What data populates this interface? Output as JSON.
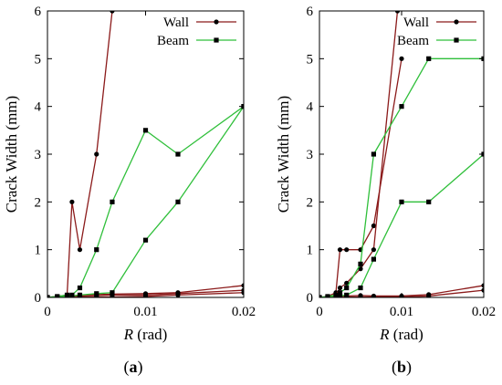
{
  "colors": {
    "wall": "#8b1a1a",
    "beam": "#2fbf3a",
    "axis": "#000000"
  },
  "chart_data": [
    {
      "type": "line",
      "panel_caption": "(a)",
      "caption_letter": "a",
      "xlabel_italic": "R",
      "xlabel_unit": " (rad)",
      "ylabel": "Crack Width (mm)",
      "xlim": [
        0,
        0.02
      ],
      "ylim": [
        0,
        6
      ],
      "xticks": [
        0,
        0.01,
        0.02
      ],
      "xtick_labels": [
        "0",
        "0.01",
        "0.02"
      ],
      "yticks": [
        0,
        1,
        2,
        3,
        4,
        5,
        6
      ],
      "ytick_labels": [
        "0",
        "1",
        "2",
        "3",
        "4",
        "5",
        "6"
      ],
      "legend_position": "top-right",
      "legend": [
        {
          "label": "Wall",
          "marker": "circle",
          "color_key": "wall"
        },
        {
          "label": "Beam",
          "marker": "square",
          "color_key": "beam"
        }
      ],
      "series": [
        {
          "group": "Wall",
          "x": [
            0,
            0.001,
            0.002,
            0.0025,
            0.0033,
            0.005,
            0.0066
          ],
          "y": [
            0,
            0.02,
            0.05,
            2.0,
            1.0,
            3.0,
            6.0
          ]
        },
        {
          "group": "Wall",
          "x": [
            0,
            0.001,
            0.002,
            0.0025,
            0.0033,
            0.005,
            0.0066,
            0.01,
            0.0133,
            0.02
          ],
          "y": [
            0,
            0.01,
            0.02,
            0.03,
            0.05,
            0.06,
            0.07,
            0.08,
            0.1,
            0.25
          ]
        },
        {
          "group": "Wall",
          "x": [
            0,
            0.001,
            0.002,
            0.0025,
            0.0033,
            0.005,
            0.0066,
            0.01,
            0.0133,
            0.02
          ],
          "y": [
            0,
            0.0,
            0.01,
            0.02,
            0.03,
            0.04,
            0.05,
            0.05,
            0.08,
            0.15
          ]
        },
        {
          "group": "Wall",
          "x": [
            0,
            0.001,
            0.002,
            0.0025,
            0.0033,
            0.005,
            0.0066,
            0.01,
            0.0133,
            0.02
          ],
          "y": [
            0,
            0.0,
            0.0,
            0.0,
            0.01,
            0.01,
            0.01,
            0.02,
            0.05,
            0.1
          ]
        },
        {
          "group": "Beam",
          "x": [
            0,
            0.001,
            0.002,
            0.0025,
            0.0033,
            0.005,
            0.0066,
            0.01,
            0.0133,
            0.02
          ],
          "y": [
            0,
            0.02,
            0.05,
            0.05,
            0.2,
            1.0,
            2.0,
            3.5,
            3.0,
            4.0
          ]
        },
        {
          "group": "Beam",
          "x": [
            0,
            0.001,
            0.002,
            0.0025,
            0.0033,
            0.005,
            0.0066,
            0.01,
            0.0133,
            0.02
          ],
          "y": [
            0,
            0.01,
            0.02,
            0.03,
            0.05,
            0.08,
            0.1,
            1.2,
            2.0,
            4.0
          ]
        }
      ]
    },
    {
      "type": "line",
      "panel_caption": "(b)",
      "caption_letter": "b",
      "xlabel_italic": "R",
      "xlabel_unit": " (rad)",
      "ylabel": "Crack Width (mm)",
      "xlim": [
        0,
        0.02
      ],
      "ylim": [
        0,
        6
      ],
      "xticks": [
        0,
        0.01,
        0.02
      ],
      "xtick_labels": [
        "0",
        "0.01",
        "0.02"
      ],
      "yticks": [
        0,
        1,
        2,
        3,
        4,
        5,
        6
      ],
      "ytick_labels": [
        "0",
        "1",
        "2",
        "3",
        "4",
        "5",
        "6"
      ],
      "legend_position": "top-right",
      "legend": [
        {
          "label": "Wall",
          "marker": "circle",
          "color_key": "wall"
        },
        {
          "label": "Beam",
          "marker": "square",
          "color_key": "beam"
        }
      ],
      "series": [
        {
          "group": "Wall",
          "x": [
            0,
            0.001,
            0.002,
            0.0025,
            0.0033,
            0.005,
            0.0066,
            0.01
          ],
          "y": [
            0,
            0.02,
            0.1,
            1.0,
            1.0,
            1.0,
            1.5,
            5.0
          ]
        },
        {
          "group": "Wall",
          "x": [
            0,
            0.001,
            0.002,
            0.0025,
            0.0033,
            0.005,
            0.0066,
            0.0095
          ],
          "y": [
            0,
            0.01,
            0.05,
            0.2,
            0.3,
            0.6,
            1.0,
            6.0
          ]
        },
        {
          "group": "Wall",
          "x": [
            0,
            0.001,
            0.002,
            0.0025,
            0.0033,
            0.005,
            0.0066,
            0.01,
            0.0133,
            0.02
          ],
          "y": [
            0,
            0.0,
            0.01,
            0.02,
            0.03,
            0.04,
            0.03,
            0.03,
            0.06,
            0.25
          ]
        },
        {
          "group": "Wall",
          "x": [
            0,
            0.001,
            0.002,
            0.0025,
            0.0033,
            0.005,
            0.0066,
            0.01,
            0.0133,
            0.02
          ],
          "y": [
            0,
            0.0,
            0.0,
            0.0,
            0.01,
            0.01,
            0.01,
            0.01,
            0.03,
            0.15
          ]
        },
        {
          "group": "Beam",
          "x": [
            0,
            0.001,
            0.002,
            0.0025,
            0.0033,
            0.005,
            0.0066,
            0.01,
            0.0133,
            0.02
          ],
          "y": [
            0,
            0.02,
            0.05,
            0.1,
            0.2,
            0.7,
            3.0,
            4.0,
            5.0,
            5.0
          ]
        },
        {
          "group": "Beam",
          "x": [
            0,
            0.001,
            0.002,
            0.0025,
            0.0033,
            0.005,
            0.0066,
            0.01,
            0.0133,
            0.02
          ],
          "y": [
            0,
            0.0,
            0.02,
            0.03,
            0.05,
            0.2,
            0.8,
            2.0,
            2.0,
            3.0
          ]
        }
      ]
    }
  ]
}
